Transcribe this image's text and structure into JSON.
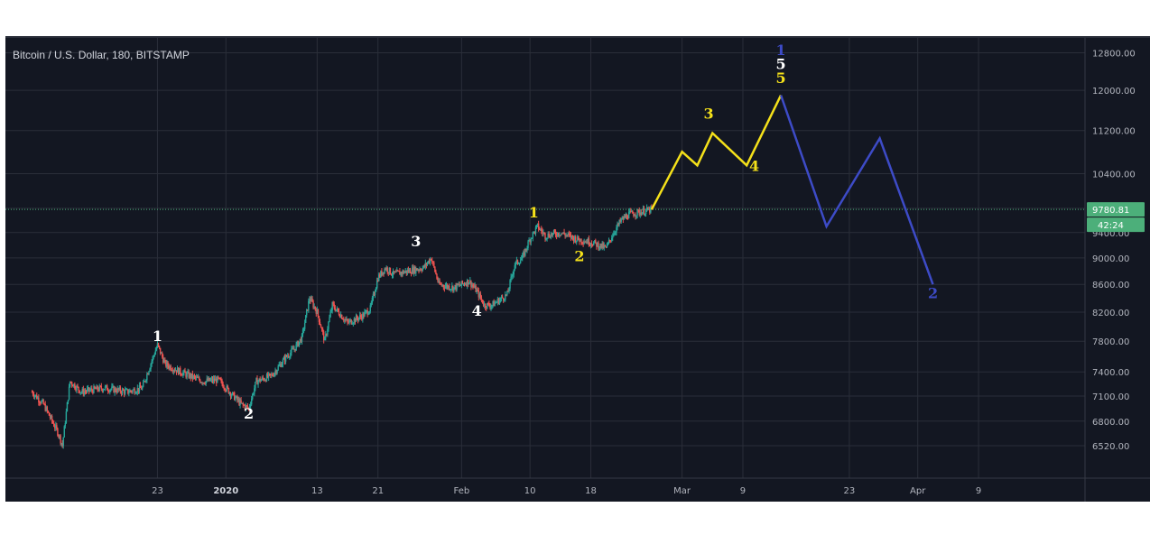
{
  "chart_data": {
    "type": "candlestick-line",
    "title": "Bitcoin / U.S. Dollar, 180, BITSTAMP",
    "y_ticks": [
      6520,
      6800,
      7100,
      7400,
      7800,
      8200,
      8600,
      9000,
      9400,
      9800,
      10400,
      11200,
      12000,
      12800
    ],
    "y_tick_labels": [
      "6520.00",
      "6800.00",
      "7100.00",
      "7400.00",
      "7800.00",
      "8200.00",
      "8600.00",
      "9000.00",
      "9400.00",
      "9800.00",
      "10400.00",
      "11200.00",
      "12000.00",
      "12800.00"
    ],
    "ylim": [
      6350,
      12950
    ],
    "xlim": [
      0,
      142
    ],
    "x_ticks": [
      {
        "label": "23",
        "day": 20
      },
      {
        "label": "2020",
        "day": 29,
        "bold": true
      },
      {
        "label": "13",
        "day": 41
      },
      {
        "label": "21",
        "day": 49
      },
      {
        "label": "Feb",
        "day": 60
      },
      {
        "label": "10",
        "day": 69
      },
      {
        "label": "18",
        "day": 77
      },
      {
        "label": "Mar",
        "day": 89
      },
      {
        "label": "9",
        "day": 97
      },
      {
        "label": "23",
        "day": 111
      },
      {
        "label": "Apr",
        "day": 120
      },
      {
        "label": "9",
        "day": 128
      }
    ],
    "price_path": [
      [
        3.5,
        7150
      ],
      [
        5,
        7000
      ],
      [
        7,
        6650
      ],
      [
        7.5,
        6520
      ],
      [
        8.5,
        7280
      ],
      [
        10,
        7150
      ],
      [
        13,
        7200
      ],
      [
        16,
        7150
      ],
      [
        18,
        7200
      ],
      [
        20,
        7750
      ],
      [
        21,
        7500
      ],
      [
        23,
        7400
      ],
      [
        26,
        7280
      ],
      [
        28,
        7300
      ],
      [
        29.5,
        7150
      ],
      [
        31,
        7000
      ],
      [
        32,
        6950
      ],
      [
        33,
        7280
      ],
      [
        35,
        7350
      ],
      [
        37,
        7600
      ],
      [
        38,
        7700
      ],
      [
        39,
        7850
      ],
      [
        40,
        8400
      ],
      [
        41,
        8200
      ],
      [
        42,
        7800
      ],
      [
        43,
        8300
      ],
      [
        45,
        8050
      ],
      [
        47,
        8150
      ],
      [
        48,
        8250
      ],
      [
        49,
        8700
      ],
      [
        50,
        8850
      ],
      [
        51,
        8750
      ],
      [
        53,
        8800
      ],
      [
        55,
        8850
      ],
      [
        56,
        9000
      ],
      [
        57,
        8600
      ],
      [
        59,
        8550
      ],
      [
        61,
        8650
      ],
      [
        62,
        8500
      ],
      [
        63,
        8300
      ],
      [
        64,
        8300
      ],
      [
        66,
        8450
      ],
      [
        67,
        8900
      ],
      [
        68,
        9000
      ],
      [
        69,
        9300
      ],
      [
        70,
        9500
      ],
      [
        71,
        9350
      ],
      [
        73,
        9400
      ],
      [
        75,
        9300
      ],
      [
        77,
        9250
      ],
      [
        78,
        9200
      ],
      [
        79,
        9150
      ],
      [
        80,
        9400
      ],
      [
        81,
        9600
      ],
      [
        82,
        9700
      ],
      [
        84,
        9750
      ],
      [
        85,
        9780
      ]
    ],
    "current_price": 9780.81,
    "current_price_label": "9780.81",
    "countdown_label": "42:24",
    "yellow_path": [
      [
        85,
        9780
      ],
      [
        89,
        10800
      ],
      [
        91,
        10550
      ],
      [
        93,
        11150
      ],
      [
        97.5,
        10550
      ],
      [
        102,
        11900
      ]
    ],
    "blue_path": [
      [
        102,
        11900
      ],
      [
        108,
        9500
      ],
      [
        115,
        11050
      ],
      [
        122,
        8600
      ]
    ],
    "labels": [
      {
        "text": "1",
        "day": 20,
        "price": 7800,
        "color": "white"
      },
      {
        "text": "2",
        "day": 32,
        "price": 6830,
        "color": "white"
      },
      {
        "text": "3",
        "day": 54,
        "price": 9180,
        "color": "white"
      },
      {
        "text": "4",
        "day": 62,
        "price": 8150,
        "color": "white"
      },
      {
        "text": "1",
        "day": 69.5,
        "price": 9650,
        "color": "yellow"
      },
      {
        "text": "2",
        "day": 75.5,
        "price": 8950,
        "color": "yellow"
      },
      {
        "text": "3",
        "day": 92.5,
        "price": 11430,
        "color": "yellow"
      },
      {
        "text": "4",
        "day": 98.5,
        "price": 10450,
        "color": "yellow"
      },
      {
        "text": "5",
        "day": 102,
        "price": 12150,
        "color": "yellow"
      },
      {
        "text": "5",
        "day": 102,
        "price": 12450,
        "color": "white"
      },
      {
        "text": "1",
        "day": 102,
        "price": 12750,
        "color": "blue"
      },
      {
        "text": "2",
        "day": 122,
        "price": 8400,
        "color": "blue"
      }
    ],
    "colors": {
      "background": "#131722",
      "grid": "#2a2e39",
      "up": "#26a69a",
      "down": "#ef5350",
      "yellow": "#f5e11a",
      "blue": "#3d4bc7",
      "white": "#ffffff",
      "price_line": "#4caf7a",
      "badge": "#4caf7a"
    }
  }
}
